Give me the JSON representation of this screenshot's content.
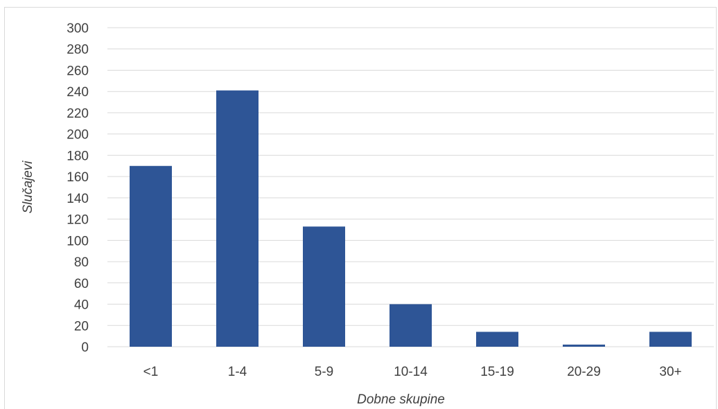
{
  "chart_data": {
    "type": "bar",
    "title": "",
    "xlabel": "Dobne skupine",
    "ylabel": "Slučajevi",
    "categories": [
      "<1",
      "1-4",
      "5-9",
      "10-14",
      "15-19",
      "20-29",
      "30+"
    ],
    "values": [
      170,
      241,
      113,
      40,
      14,
      2,
      14
    ],
    "ylim": [
      0,
      300
    ],
    "yticks": [
      "0",
      "20",
      "40",
      "60",
      "80",
      "100",
      "120",
      "140",
      "160",
      "180",
      "200",
      "220",
      "240",
      "260",
      "280",
      "300"
    ],
    "grid": true,
    "legend": "none",
    "bar_color": "#2e5596",
    "grid_color": "#d9d9d9",
    "text_color": "#404040"
  }
}
